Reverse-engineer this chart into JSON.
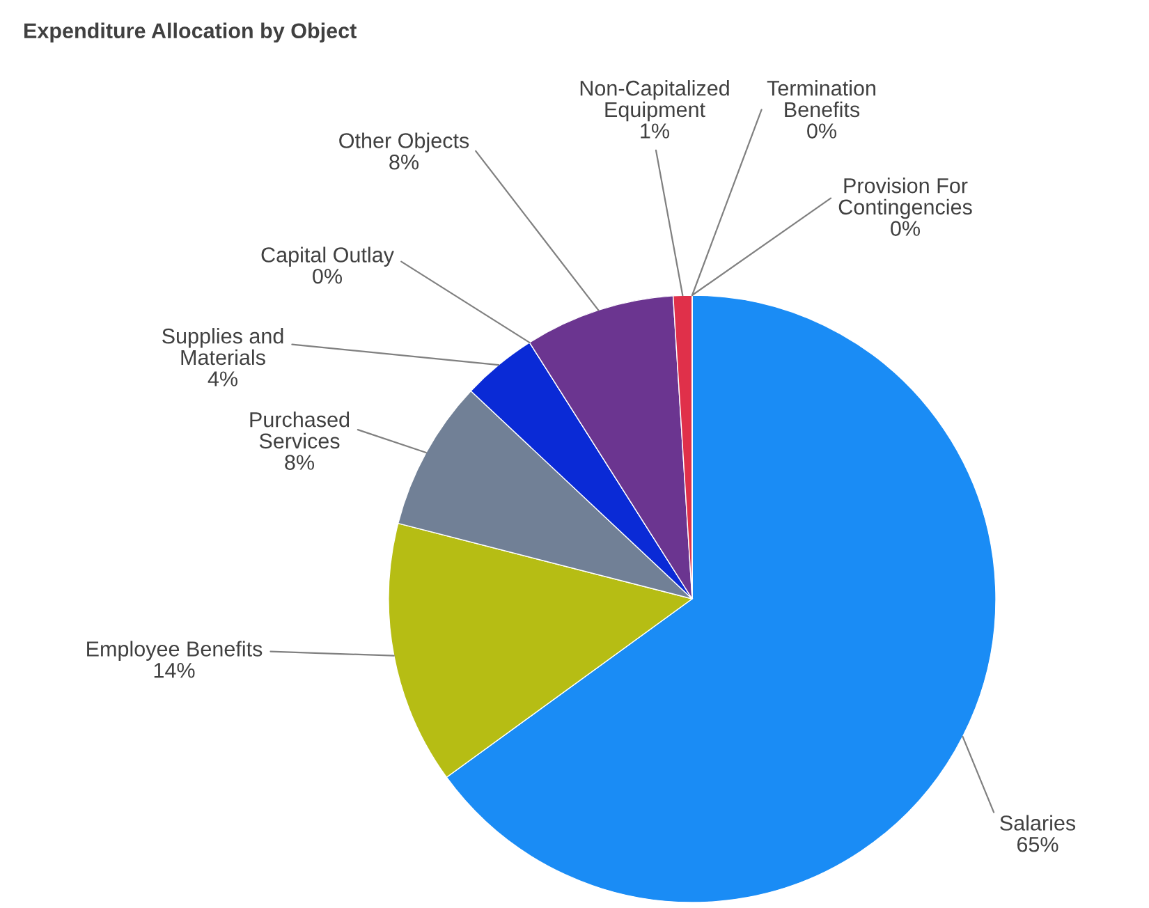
{
  "chart_data": {
    "type": "pie",
    "title": "Expenditure Allocation by Object",
    "categories": [
      "Salaries",
      "Employee Benefits",
      "Purchased Services",
      "Supplies and Materials",
      "Capital Outlay",
      "Other Objects",
      "Non-Capitalized Equipment",
      "Termination Benefits",
      "Provision For Contingencies"
    ],
    "values": [
      65,
      14,
      8,
      4,
      0,
      8,
      1,
      0,
      0
    ],
    "value_labels": [
      "65%",
      "14%",
      "8%",
      "4%",
      "0%",
      "8%",
      "1%",
      "0%",
      "0%"
    ],
    "colors": [
      "#1a8cf5",
      "#b6bd14",
      "#718096",
      "#0a2ad6",
      "#e0702a",
      "#6b3590",
      "#e0304a",
      "#f08a30",
      "#2aa040"
    ]
  }
}
